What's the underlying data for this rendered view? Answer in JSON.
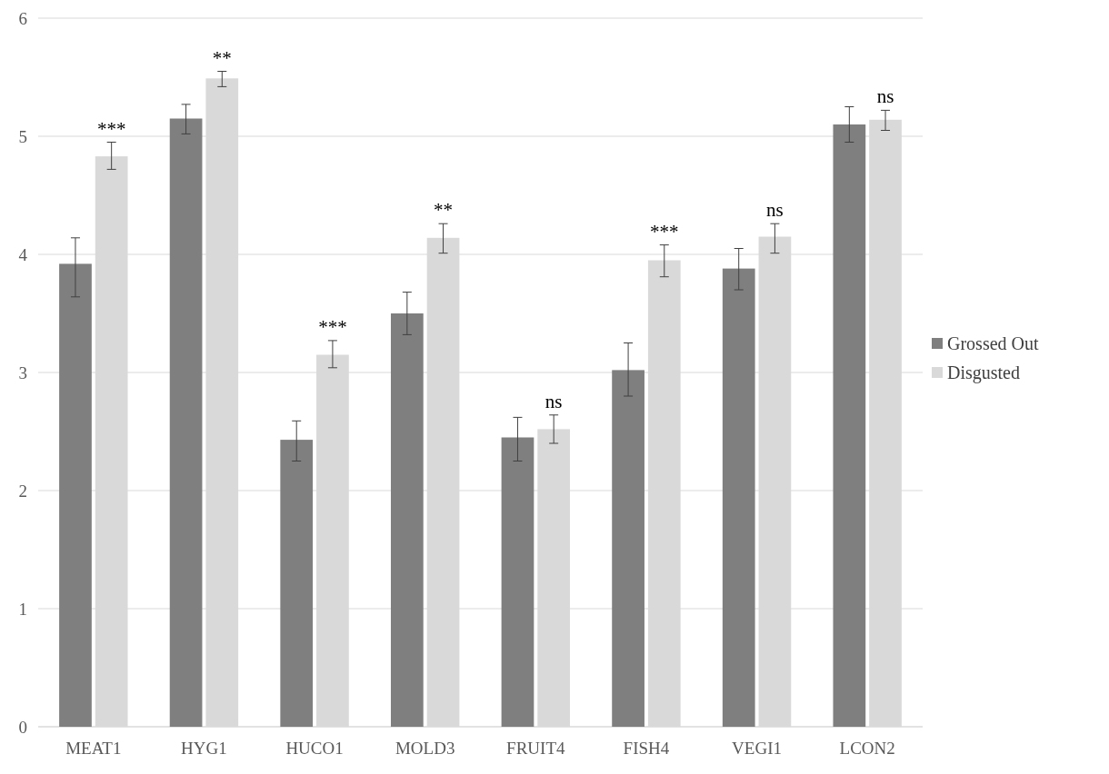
{
  "chart_data": {
    "type": "bar",
    "categories": [
      "MEAT1",
      "HYG1",
      "HUCO1",
      "MOLD3",
      "FRUIT4",
      "FISH4",
      "VEGI1",
      "LCON2"
    ],
    "series": [
      {
        "name": "Grossed Out",
        "color": "#7f7f7f",
        "values": [
          3.92,
          5.15,
          2.43,
          3.5,
          2.45,
          3.02,
          3.88,
          5.1
        ],
        "errors": [
          [
            3.64,
            4.14
          ],
          [
            5.02,
            5.27
          ],
          [
            2.25,
            2.59
          ],
          [
            3.32,
            3.68
          ],
          [
            2.25,
            2.62
          ],
          [
            2.8,
            3.25
          ],
          [
            3.7,
            4.05
          ],
          [
            4.95,
            5.25
          ]
        ]
      },
      {
        "name": "Disgusted",
        "color": "#d9d9d9",
        "values": [
          4.83,
          5.49,
          3.15,
          4.14,
          2.52,
          3.95,
          4.15,
          5.14
        ],
        "errors": [
          [
            4.72,
            4.95
          ],
          [
            5.42,
            5.55
          ],
          [
            3.04,
            3.27
          ],
          [
            4.01,
            4.26
          ],
          [
            2.4,
            2.64
          ],
          [
            3.81,
            4.08
          ],
          [
            4.01,
            4.26
          ],
          [
            5.05,
            5.22
          ]
        ]
      }
    ],
    "ylim": [
      0,
      6
    ],
    "yticks": [
      0,
      1,
      2,
      3,
      4,
      5,
      6
    ],
    "grid": "y",
    "legend": "right",
    "annotations": [
      {
        "text": "***",
        "x": "MEAT1",
        "y": 4.83
      },
      {
        "text": "**",
        "x": "HYG1",
        "y": 5.49
      },
      {
        "text": "***",
        "x": "HUCO1",
        "y": 3.15
      },
      {
        "text": "**",
        "x": "MOLD3",
        "y": 4.14
      },
      {
        "text": "ns",
        "x": "FRUIT4",
        "y": 2.52
      },
      {
        "text": "***",
        "x": "FISH4",
        "y": 3.95
      },
      {
        "text": "ns",
        "x": "VEGI1",
        "y": 4.15
      },
      {
        "text": "ns",
        "x": "LCON2",
        "y": 5.14
      }
    ]
  }
}
